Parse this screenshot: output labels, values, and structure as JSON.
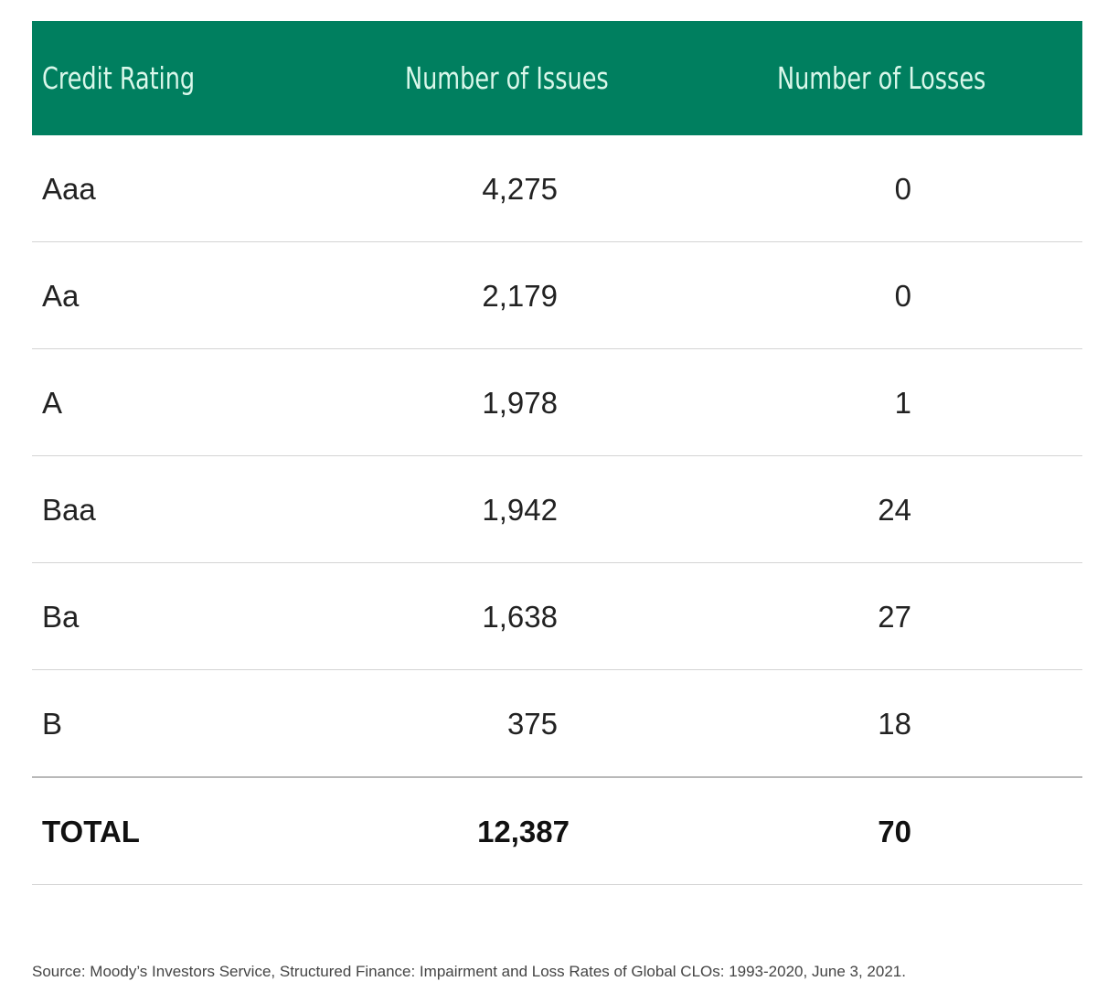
{
  "table": {
    "headers": [
      "Credit Rating",
      "Number of Issues",
      "Number of Losses"
    ],
    "rows": [
      {
        "rating": "Aaa",
        "issues": "4,275",
        "losses": "0"
      },
      {
        "rating": "Aa",
        "issues": "2,179",
        "losses": "0"
      },
      {
        "rating": "A",
        "issues": "1,978",
        "losses": "1"
      },
      {
        "rating": "Baa",
        "issues": "1,942",
        "losses": "24"
      },
      {
        "rating": "Ba",
        "issues": "1,638",
        "losses": "27"
      },
      {
        "rating": "B",
        "issues": "375",
        "losses": "18"
      }
    ],
    "total": {
      "rating": "TOTAL",
      "issues": "12,387",
      "losses": "70"
    }
  },
  "source": "Source: Moody’s Investors Service, Structured Finance: Impairment and Loss Rates of Global CLOs: 1993-2020, June 3, 2021.",
  "colors": {
    "header_bg": "#007f5f",
    "header_text": "#d9f7ea"
  }
}
